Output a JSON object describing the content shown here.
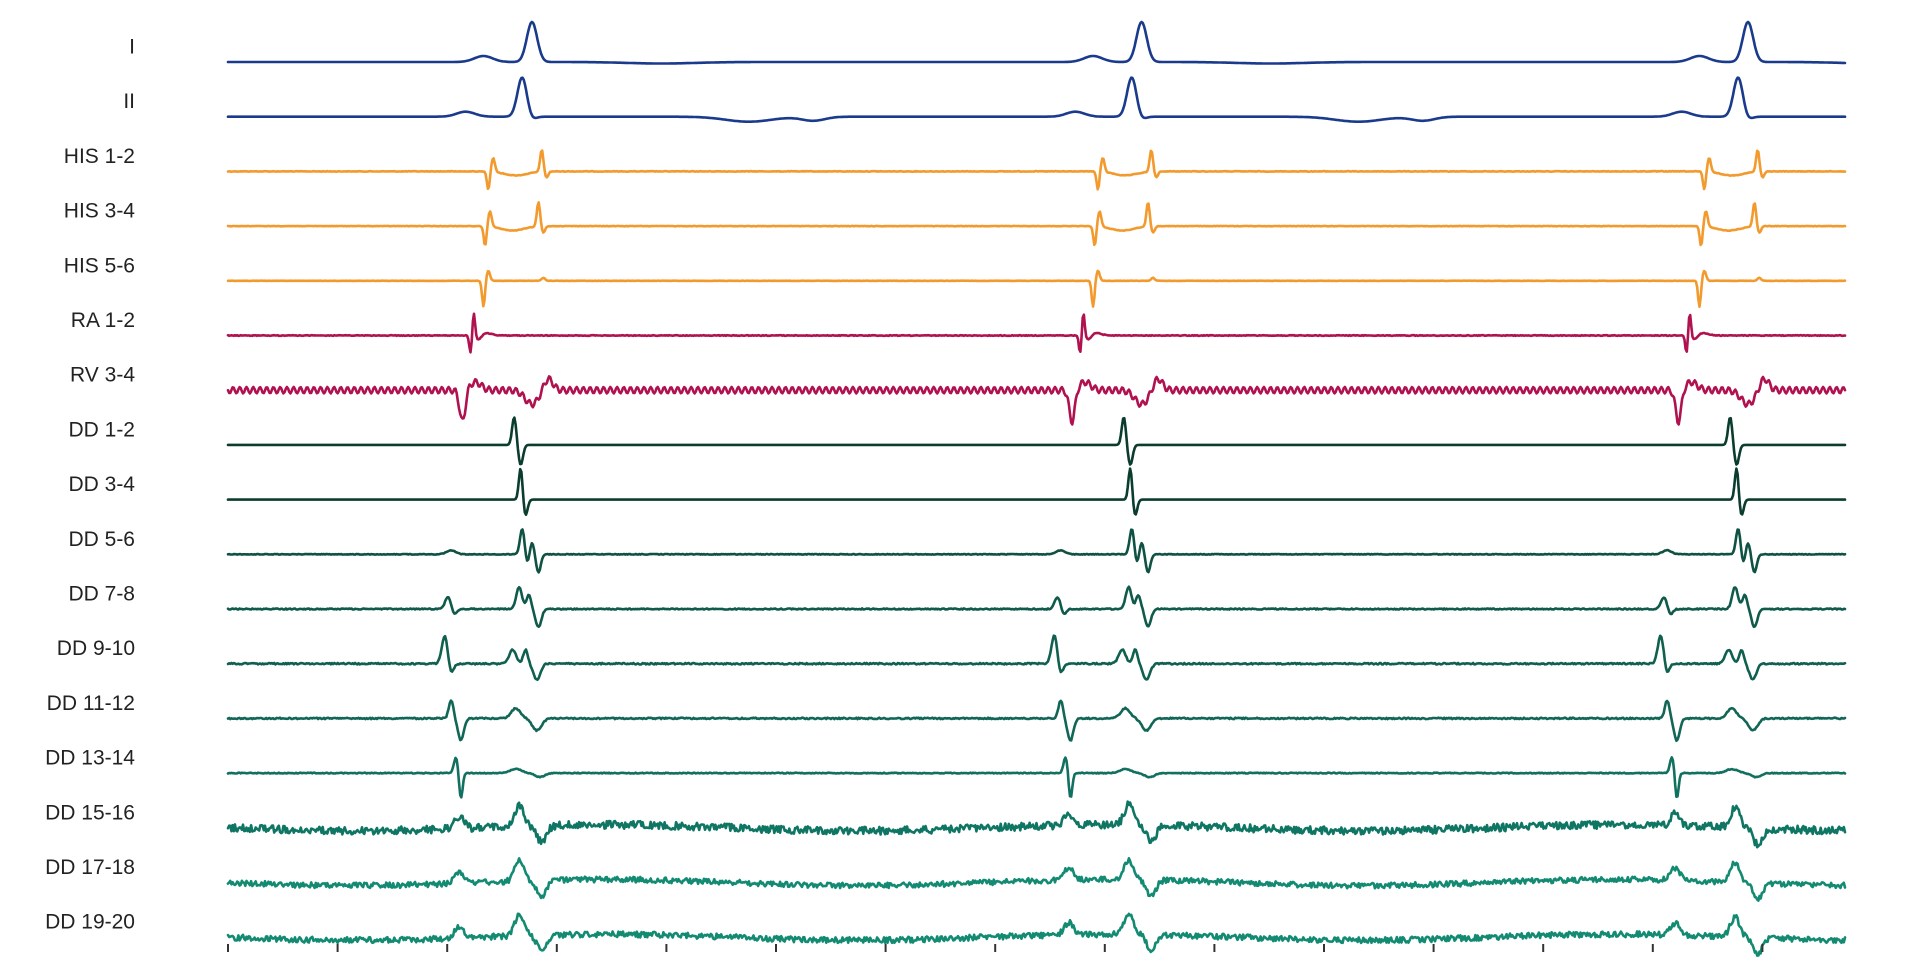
{
  "chart_data": {
    "type": "line",
    "title": "",
    "xlabel": "",
    "ylabel": "",
    "x_ticks_count": 15,
    "tick_labels_shown": false,
    "grid": false,
    "legend": "none",
    "beats": [
      0.188,
      0.565,
      0.94
    ],
    "series": [
      {
        "name": "I",
        "color": "#1a3a8c",
        "kind": "ecg",
        "dx": 0.0,
        "amp": 1.0,
        "noise": 0.0,
        "spacing": 1.0
      },
      {
        "name": "II",
        "color": "#1a3a8c",
        "kind": "ecg2",
        "dx": -0.006,
        "amp": 1.0,
        "noise": 0.0,
        "spacing": 1.0
      },
      {
        "name": "HIS 1-2",
        "color": "#f29a2e",
        "kind": "his",
        "dx": 0.0,
        "amp": 1.0,
        "noise": 0.04,
        "spacing": 1.0
      },
      {
        "name": "HIS 3-4",
        "color": "#f29a2e",
        "kind": "his",
        "dx": -0.002,
        "amp": 1.1,
        "noise": 0.03,
        "spacing": 1.0
      },
      {
        "name": "HIS 5-6",
        "color": "#f29a2e",
        "kind": "his56",
        "dx": -0.003,
        "amp": 1.0,
        "noise": 0.02,
        "spacing": 1.0
      },
      {
        "name": "RA 1-2",
        "color": "#b0124f",
        "kind": "ra",
        "dx": 0.0,
        "amp": 1.0,
        "noise": 0.05,
        "spacing": 1.0
      },
      {
        "name": "RV 3-4",
        "color": "#b0124f",
        "kind": "rv",
        "dx": 0.0,
        "amp": 1.0,
        "noise": 0.0,
        "spacing": 1.0
      },
      {
        "name": "DD 1-2",
        "color": "#0b3d2e",
        "kind": "dd12",
        "dx": 0.0,
        "amp": 1.0,
        "noise": 0.0,
        "spacing": 1.0
      },
      {
        "name": "DD 3-4",
        "color": "#0b3d2e",
        "kind": "dd34",
        "dx": 0.0,
        "amp": 1.0,
        "noise": 0.0,
        "spacing": 1.0
      },
      {
        "name": "DD 5-6",
        "color": "#0f5244",
        "kind": "dd56",
        "dx": 0.0,
        "amp": 1.0,
        "noise": 0.05,
        "spacing": 1.0
      },
      {
        "name": "DD 7-8",
        "color": "#0f5a4a",
        "kind": "dd78",
        "dx": 0.0,
        "amp": 1.0,
        "noise": 0.08,
        "spacing": 1.0
      },
      {
        "name": "DD 9-10",
        "color": "#10604f",
        "kind": "dd910",
        "dx": 0.0,
        "amp": 1.0,
        "noise": 0.1,
        "spacing": 1.0
      },
      {
        "name": "DD 11-12",
        "color": "#116656",
        "kind": "dd1112",
        "dx": 0.0,
        "amp": 1.0,
        "noise": 0.1,
        "spacing": 1.0
      },
      {
        "name": "DD 13-14",
        "color": "#127060",
        "kind": "dd1314",
        "dx": 0.0,
        "amp": 1.0,
        "noise": 0.06,
        "spacing": 1.0
      },
      {
        "name": "DD 15-16",
        "color": "#0f7664",
        "kind": "noisy",
        "dx": 0.0,
        "amp": 1.0,
        "noise": 0.55,
        "spacing": 1.0
      },
      {
        "name": "DD 17-18",
        "color": "#138a72",
        "kind": "noisy",
        "dx": 0.0,
        "amp": 1.0,
        "noise": 0.4,
        "spacing": 1.0
      },
      {
        "name": "DD 19-20",
        "color": "#138a72",
        "kind": "noisy",
        "dx": 0.0,
        "amp": 1.0,
        "noise": 0.42,
        "spacing": 1.0
      }
    ]
  }
}
